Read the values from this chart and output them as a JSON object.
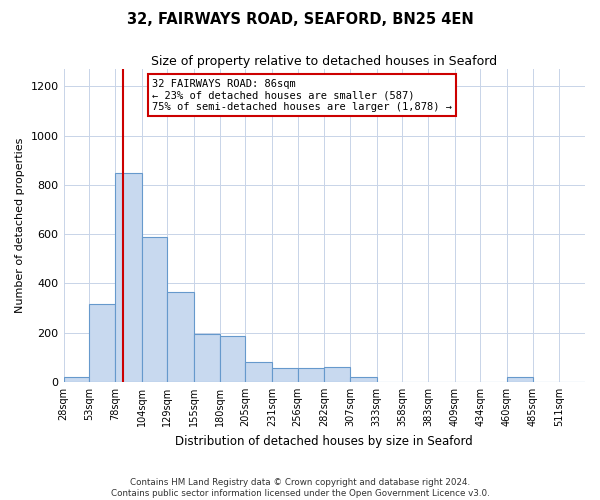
{
  "title": "32, FAIRWAYS ROAD, SEAFORD, BN25 4EN",
  "subtitle": "Size of property relative to detached houses in Seaford",
  "xlabel": "Distribution of detached houses by size in Seaford",
  "ylabel": "Number of detached properties",
  "footer_line1": "Contains HM Land Registry data © Crown copyright and database right 2024.",
  "footer_line2": "Contains public sector information licensed under the Open Government Licence v3.0.",
  "property_size": 86,
  "annotation_line1": "32 FAIRWAYS ROAD: 86sqm",
  "annotation_line2": "← 23% of detached houses are smaller (587)",
  "annotation_line3": "75% of semi-detached houses are larger (1,878) →",
  "bin_edges": [
    28,
    53,
    78,
    104,
    129,
    155,
    180,
    205,
    231,
    256,
    282,
    307,
    333,
    358,
    383,
    409,
    434,
    460,
    485,
    511,
    536
  ],
  "bar_heights": [
    20,
    315,
    850,
    590,
    365,
    195,
    185,
    80,
    55,
    55,
    60,
    20,
    0,
    0,
    0,
    0,
    0,
    20,
    0,
    0
  ],
  "bar_color": "#c8d9ef",
  "bar_edge_color": "#6699cc",
  "red_line_color": "#cc0000",
  "annotation_box_edge_color": "#cc0000",
  "ylim": [
    0,
    1270
  ],
  "yticks": [
    0,
    200,
    400,
    600,
    800,
    1000,
    1200
  ],
  "background_color": "#ffffff",
  "grid_color": "#c8d4e8"
}
